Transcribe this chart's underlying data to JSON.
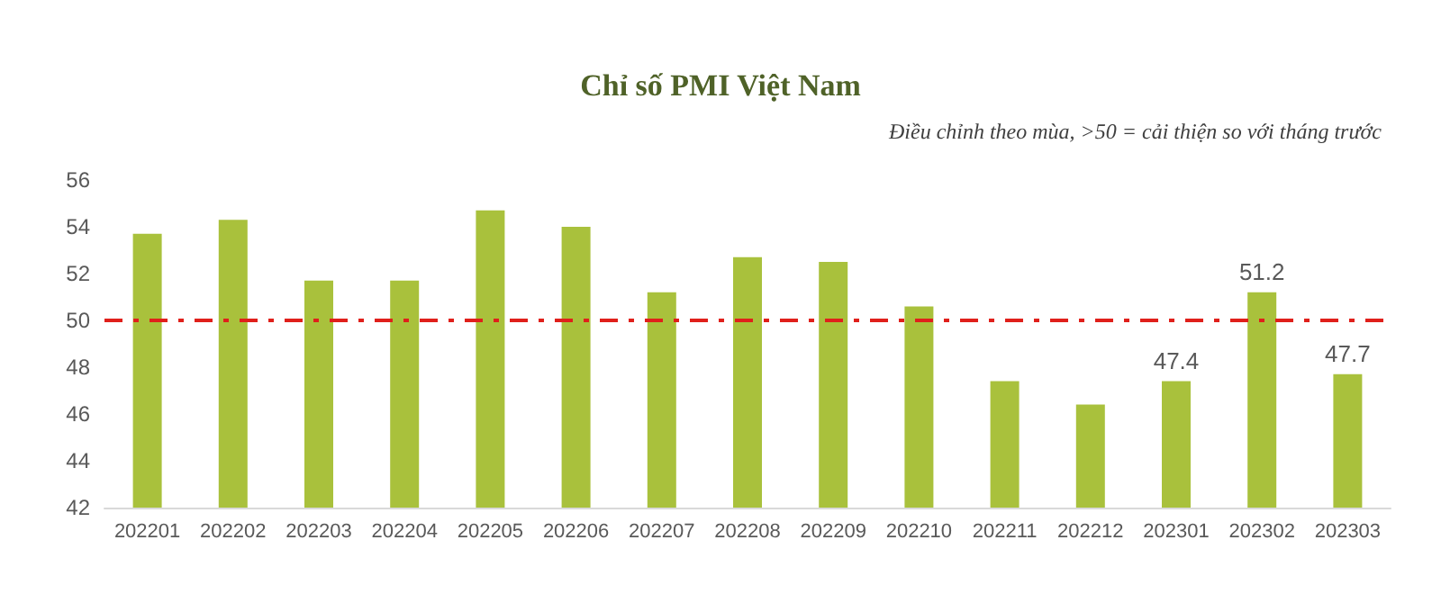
{
  "chart_data": {
    "type": "bar",
    "title": "Chỉ số PMI Việt Nam",
    "subtitle": "Điều chỉnh theo mùa, >50 = cải thiện so với tháng trước",
    "categories": [
      "202201",
      "202202",
      "202203",
      "202204",
      "202205",
      "202206",
      "202207",
      "202208",
      "202209",
      "202210",
      "202211",
      "202212",
      "202301",
      "202302",
      "202303"
    ],
    "values": [
      53.7,
      54.3,
      51.7,
      51.7,
      54.7,
      54.0,
      51.2,
      52.7,
      52.5,
      50.6,
      47.4,
      46.4,
      47.4,
      51.2,
      47.7
    ],
    "value_labels": [
      null,
      null,
      null,
      null,
      null,
      null,
      null,
      null,
      null,
      null,
      null,
      null,
      "47.4",
      "51.2",
      "47.7"
    ],
    "color": "#a9c13c",
    "ylim": [
      42,
      56
    ],
    "yticks": [
      42,
      44,
      46,
      48,
      50,
      52,
      54,
      56
    ],
    "grid": false,
    "ref_lines": [
      {
        "axis": "y",
        "value": 50,
        "color": "#e0201b",
        "line_style": "dashed"
      }
    ]
  }
}
